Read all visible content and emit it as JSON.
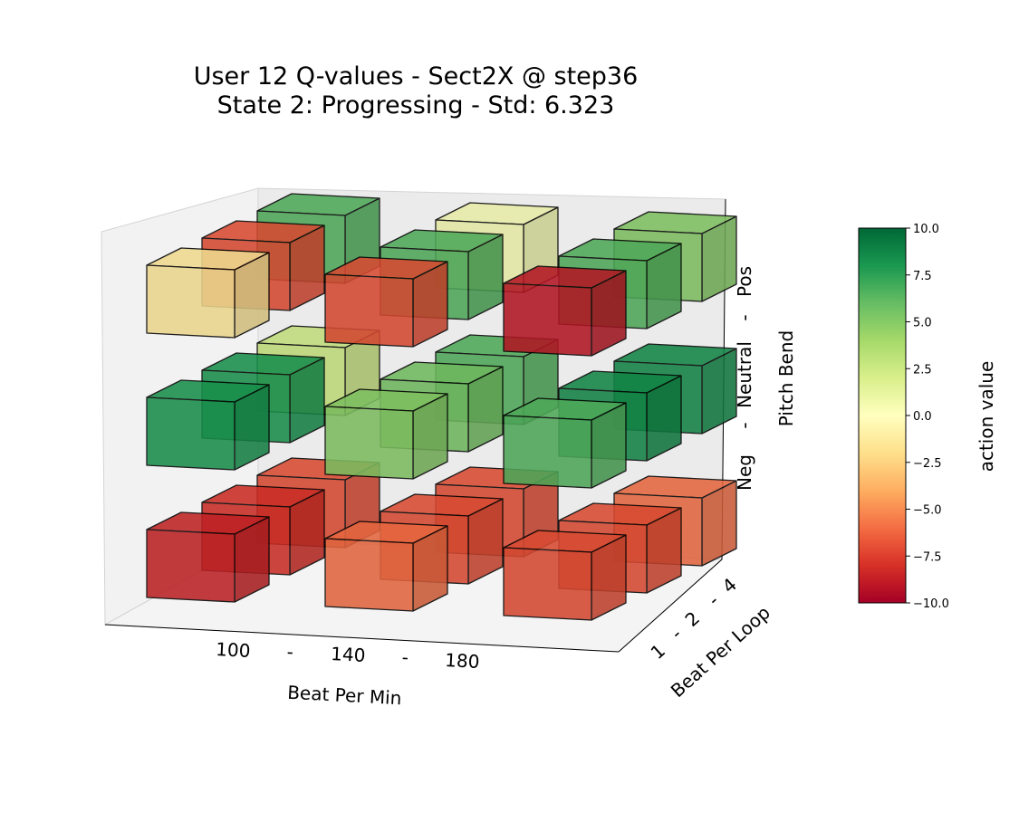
{
  "chart_data": {
    "type": "bar3d",
    "title_line1": "User 12 Q-values  -  Sect2X @ step36",
    "title_line2": "State 2: Progressing  -  Std: 6.323",
    "xlabel": "Beat Per Min",
    "ylabel": "Beat Per Loop",
    "zlabel": "Pitch Bend",
    "x_ticks": [
      "100",
      "-",
      "140",
      "-",
      "180"
    ],
    "y_ticks": [
      "1",
      "-",
      "2",
      "-",
      "4"
    ],
    "z_ticks": [
      "Neg",
      "-",
      "Neutral",
      "-",
      "Pos"
    ],
    "x_categories": [
      "100",
      "140",
      "180"
    ],
    "y_categories": [
      "1",
      "2",
      "4"
    ],
    "z_categories": [
      "Neg",
      "Neutral",
      "Pos"
    ],
    "colorbar": {
      "label": "action value",
      "range": [
        -10,
        10
      ],
      "colormap": "RdYlGn",
      "ticks": [
        "10.0",
        "7.5",
        "5.0",
        "2.5",
        "0.0",
        "−2.5",
        "−5.0",
        "−7.5",
        "−10.0"
      ]
    },
    "values": [
      {
        "bpm": "100",
        "loop": "1",
        "pitch": "Neg",
        "value": -8.5
      },
      {
        "bpm": "100",
        "loop": "2",
        "pitch": "Neg",
        "value": -8.0
      },
      {
        "bpm": "100",
        "loop": "4",
        "pitch": "Neg",
        "value": -7.0
      },
      {
        "bpm": "140",
        "loop": "1",
        "pitch": "Neg",
        "value": -6.0
      },
      {
        "bpm": "140",
        "loop": "2",
        "pitch": "Neg",
        "value": -7.0
      },
      {
        "bpm": "140",
        "loop": "4",
        "pitch": "Neg",
        "value": -7.0
      },
      {
        "bpm": "180",
        "loop": "1",
        "pitch": "Neg",
        "value": -7.0
      },
      {
        "bpm": "180",
        "loop": "2",
        "pitch": "Neg",
        "value": -7.0
      },
      {
        "bpm": "180",
        "loop": "4",
        "pitch": "Neg",
        "value": -6.0
      },
      {
        "bpm": "100",
        "loop": "1",
        "pitch": "Neutral",
        "value": 8.0
      },
      {
        "bpm": "100",
        "loop": "2",
        "pitch": "Neutral",
        "value": 8.0
      },
      {
        "bpm": "100",
        "loop": "4",
        "pitch": "Neutral",
        "value": 2.5
      },
      {
        "bpm": "140",
        "loop": "1",
        "pitch": "Neutral",
        "value": 5.0
      },
      {
        "bpm": "140",
        "loop": "2",
        "pitch": "Neutral",
        "value": 5.5
      },
      {
        "bpm": "140",
        "loop": "4",
        "pitch": "Neutral",
        "value": 6.5
      },
      {
        "bpm": "180",
        "loop": "1",
        "pitch": "Neutral",
        "value": 6.5
      },
      {
        "bpm": "180",
        "loop": "2",
        "pitch": "Neutral",
        "value": 8.5
      },
      {
        "bpm": "180",
        "loop": "4",
        "pitch": "Neutral",
        "value": 8.5
      },
      {
        "bpm": "100",
        "loop": "1",
        "pitch": "Pos",
        "value": -1.5
      },
      {
        "bpm": "100",
        "loop": "2",
        "pitch": "Pos",
        "value": -7.0
      },
      {
        "bpm": "100",
        "loop": "4",
        "pitch": "Pos",
        "value": 6.5
      },
      {
        "bpm": "140",
        "loop": "1",
        "pitch": "Pos",
        "value": -7.0
      },
      {
        "bpm": "140",
        "loop": "2",
        "pitch": "Pos",
        "value": 6.5
      },
      {
        "bpm": "140",
        "loop": "4",
        "pitch": "Pos",
        "value": 0.5
      },
      {
        "bpm": "180",
        "loop": "1",
        "pitch": "Pos",
        "value": -9.0
      },
      {
        "bpm": "180",
        "loop": "2",
        "pitch": "Pos",
        "value": 6.5
      },
      {
        "bpm": "180",
        "loop": "4",
        "pitch": "Pos",
        "value": 5.0
      }
    ]
  }
}
